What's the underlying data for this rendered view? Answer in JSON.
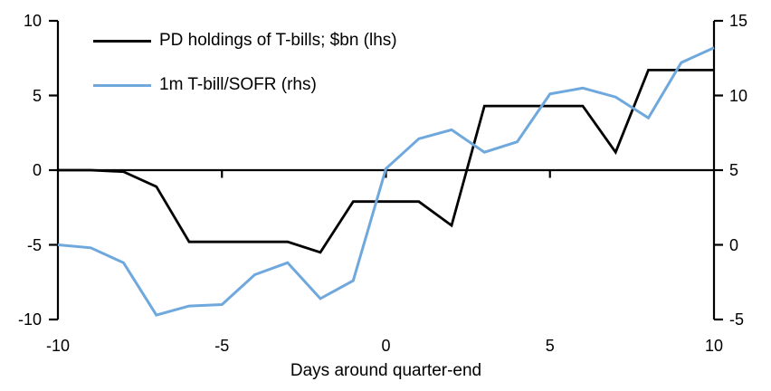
{
  "chart_data": {
    "type": "line",
    "xlabel": "Days around quarter-end",
    "x": [
      -10,
      -9,
      -8,
      -7,
      -6,
      -5,
      -4,
      -3,
      -2,
      -1,
      0,
      1,
      2,
      3,
      4,
      5,
      6,
      7,
      8,
      9,
      10
    ],
    "x_ticks": [
      -10,
      -5,
      0,
      5,
      10
    ],
    "left_axis": {
      "ticks": [
        10,
        5,
        0,
        -5,
        -10
      ],
      "range": [
        -10,
        10
      ]
    },
    "right_axis": {
      "ticks": [
        15,
        10,
        5,
        0,
        -5
      ],
      "range": [
        -5,
        15
      ]
    },
    "grid": false,
    "legend_position": "top-left",
    "series": [
      {
        "id": "pd-holdings-tbills",
        "name": "PD holdings of T-bills; $bn (lhs)",
        "axis": "left",
        "color": "#000000",
        "values": [
          0.0,
          0.0,
          -0.1,
          -1.1,
          -4.8,
          -4.8,
          -4.8,
          -4.8,
          -5.5,
          -2.1,
          -2.1,
          -2.1,
          -3.7,
          4.3,
          4.3,
          4.3,
          4.3,
          1.2,
          6.7,
          6.7,
          6.7
        ]
      },
      {
        "id": "1m-tbill-sofr",
        "name": "1m T-bill/SOFR (rhs)",
        "axis": "right",
        "color": "#6fa8dc",
        "values": [
          0.0,
          -0.2,
          -1.2,
          -4.7,
          -4.1,
          -4.0,
          -2.0,
          -1.2,
          -3.6,
          -2.4,
          5.1,
          7.1,
          7.7,
          6.2,
          6.9,
          10.1,
          10.5,
          9.9,
          8.5,
          12.2,
          13.2
        ]
      }
    ]
  }
}
